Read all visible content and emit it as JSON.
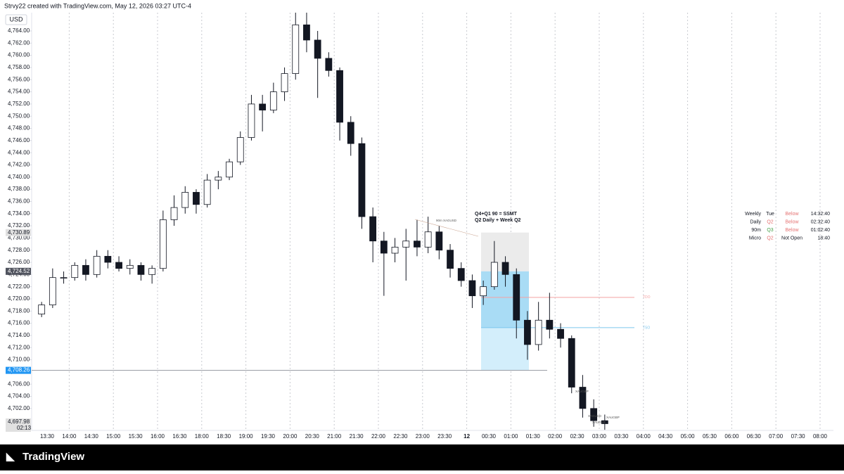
{
  "header": "Strvy22 created with TradingView.com, May 12, 2026 03:27 UTC-4",
  "currency": "USD",
  "footer": "TradingView",
  "chart_data": {
    "type": "candlestick",
    "grid": "vertical",
    "ylim": [
      4698.4,
      4767.0
    ],
    "yticks": [
      {
        "value": 4702,
        "label": "4,702.00"
      },
      {
        "value": 4704,
        "label": "4,704.00"
      },
      {
        "value": 4706,
        "label": "4,706.00"
      },
      {
        "value": 4708,
        "label": "4,708.00"
      },
      {
        "value": 4710,
        "label": "4,710.00"
      },
      {
        "value": 4712,
        "label": "4,712.00"
      },
      {
        "value": 4714,
        "label": "4,714.00"
      },
      {
        "value": 4716,
        "label": "4,716.00"
      },
      {
        "value": 4718,
        "label": "4,718.00"
      },
      {
        "value": 4720,
        "label": "4,720.00"
      },
      {
        "value": 4722,
        "label": "4,722.00"
      },
      {
        "value": 4724,
        "label": "4,724.00"
      },
      {
        "value": 4726,
        "label": "4,726.00"
      },
      {
        "value": 4728,
        "label": "4,728.00"
      },
      {
        "value": 4730,
        "label": "4,730.00"
      },
      {
        "value": 4732,
        "label": "4,732.00"
      },
      {
        "value": 4734,
        "label": "4,734.00"
      },
      {
        "value": 4736,
        "label": "4,736.00"
      },
      {
        "value": 4738,
        "label": "4,738.00"
      },
      {
        "value": 4740,
        "label": "4,740.00"
      },
      {
        "value": 4742,
        "label": "4,742.00"
      },
      {
        "value": 4744,
        "label": "4,744.00"
      },
      {
        "value": 4746,
        "label": "4,746.00"
      },
      {
        "value": 4748,
        "label": "4,748.00"
      },
      {
        "value": 4750,
        "label": "4,750.00"
      },
      {
        "value": 4752,
        "label": "4,752.00"
      },
      {
        "value": 4754,
        "label": "4,754.00"
      },
      {
        "value": 4756,
        "label": "4,756.00"
      },
      {
        "value": 4758,
        "label": "4,758.00"
      },
      {
        "value": 4760,
        "label": "4,760.00"
      },
      {
        "value": 4762,
        "label": "4,762.00"
      },
      {
        "value": 4764,
        "label": "4,764.00"
      }
    ],
    "xticks": [
      "13:30",
      "14:00",
      "14:30",
      "15:00",
      "15:30",
      "16:00",
      "16:30",
      "18:00",
      "18:30",
      "19:00",
      "19:30",
      "20:00",
      "20:30",
      "21:00",
      "21:30",
      "22:00",
      "22:30",
      "23:00",
      "23:30",
      {
        "value": "00:00",
        "label": "12"
      },
      "00:30",
      "01:00",
      "01:30",
      "02:00",
      "02:30",
      "03:00",
      "03:30",
      "04:00",
      "04:30",
      "05:00",
      "05:30",
      "06:00",
      "06:30",
      "07:00",
      "07:30",
      "08:00"
    ],
    "x": [
      "13:15",
      "13:30",
      "13:45",
      "14:00",
      "14:15",
      "14:30",
      "14:45",
      "15:00",
      "15:15",
      "15:30",
      "15:45",
      "16:00",
      "16:15",
      "16:30",
      "16:45",
      "18:00",
      "18:15",
      "18:30",
      "18:45",
      "19:00",
      "19:15",
      "19:30",
      "19:45",
      "20:00",
      "20:15",
      "20:30",
      "20:45",
      "21:00",
      "21:15",
      "21:30",
      "21:45",
      "22:00",
      "22:15",
      "22:30",
      "22:45",
      "23:00",
      "23:15",
      "23:30",
      "23:45",
      "00:00",
      "00:15",
      "00:30",
      "00:45",
      "01:00",
      "01:15",
      "01:30",
      "01:45",
      "02:00",
      "02:15",
      "02:30",
      "02:45",
      "03:00"
    ],
    "open": [
      4717.5,
      4719,
      4723.5,
      4723.5,
      4725.5,
      4724,
      4727,
      4726,
      4725,
      4725.5,
      4724,
      4725,
      4733,
      4735,
      4737.5,
      4735.5,
      4739.5,
      4740,
      4742.5,
      4746.5,
      4752,
      4751,
      4754,
      4757,
      4765,
      4762.5,
      4759.5,
      4757.5,
      4749,
      4745.5,
      4733.5,
      4729.5,
      4727.5,
      4728.5,
      4729.5,
      4728.5,
      4731,
      4728,
      4725,
      4723,
      4720.5,
      4722,
      4726,
      4724,
      4716.5,
      4712.5,
      4716.5,
      4715,
      4713.5,
      4705.5,
      4702,
      4700
    ],
    "high": [
      4719.5,
      4725,
      4724.5,
      4726,
      4726.5,
      4728,
      4728,
      4727,
      4726.5,
      4726,
      4725.5,
      4734.5,
      4737,
      4738.5,
      4738,
      4740.5,
      4741,
      4743,
      4747.5,
      4753.5,
      4753.5,
      4755.5,
      4758,
      4767,
      4767,
      4764,
      4760.5,
      4758,
      4750,
      4746.5,
      4735,
      4731,
      4730,
      4731.5,
      4733,
      4733.5,
      4732,
      4729,
      4726,
      4724,
      4723,
      4729.5,
      4727,
      4725,
      4718,
      4719.5,
      4721,
      4716,
      4714,
      4707.5,
      4703.5,
      4701
    ],
    "low": [
      4717,
      4718.5,
      4722.5,
      4723,
      4723,
      4723.5,
      4725,
      4724.5,
      4724,
      4723,
      4722.5,
      4724.5,
      4732,
      4734,
      4734,
      4735,
      4738,
      4739.5,
      4742,
      4746,
      4747.5,
      4750.5,
      4752.5,
      4756,
      4760.5,
      4753,
      4756.5,
      4746,
      4743.5,
      4731.5,
      4726,
      4720.5,
      4726,
      4723,
      4727,
      4727.5,
      4726.5,
      4723.5,
      4722,
      4718.5,
      4719,
      4721.5,
      4722,
      4713.5,
      4710,
      4711.5,
      4713.5,
      4712,
      4704.5,
      4700.5,
      4699,
      4698.5
    ],
    "close": [
      4719,
      4723.5,
      4723.5,
      4725.5,
      4724,
      4727,
      4726,
      4725,
      4725.5,
      4724,
      4725,
      4733,
      4735,
      4737.5,
      4735.5,
      4739.5,
      4740,
      4742.5,
      4746.5,
      4752,
      4751,
      4754,
      4757,
      4765,
      4762.5,
      4759.5,
      4757.5,
      4749,
      4745.5,
      4733.5,
      4729.5,
      4727.5,
      4728.5,
      4729.5,
      4728.5,
      4731,
      4728,
      4725,
      4723,
      4720.5,
      4722,
      4726,
      4724,
      4716.5,
      4712.5,
      4716.5,
      4715,
      4713.5,
      4705.5,
      4702,
      4700,
      4699.5
    ],
    "price_labels": [
      {
        "value": 4730.89,
        "label": "4,730.89",
        "color": "#e0e0e0"
      },
      {
        "value": 4724.52,
        "label": "4,724.52",
        "color": "#50535e"
      },
      {
        "value": 4708.26,
        "label": "4,708.26",
        "color": "#2196f3"
      },
      {
        "value": 4697.98,
        "label": "4,697.98",
        "color": "#e0e0e0",
        "countdown": "02:13"
      }
    ],
    "levels": [
      {
        "name": "TDO",
        "value": 4720.24,
        "color": "#f4a3a3"
      },
      {
        "name": "TSO",
        "value": 4715.27,
        "color": "#7cc6ee"
      }
    ],
    "annotations": [
      "Q4+Q1 90 = SSMT",
      "Q2 Daily + Week Q2"
    ],
    "small_labels": [
      "90m XAGUSD",
      "XAUGBP",
      "XAGUSD",
      "XAUGBP",
      "XAUEUR"
    ]
  },
  "table": {
    "rows": [
      [
        "Weekly",
        "Tue",
        "Below",
        "14:32:40"
      ],
      [
        "Daily",
        "Q2",
        "Below",
        "02:32:40"
      ],
      [
        "90m",
        "Q3",
        "Below",
        "01:02:40"
      ],
      [
        "Micro",
        "Q2",
        "Not Open",
        "18:40"
      ]
    ]
  }
}
